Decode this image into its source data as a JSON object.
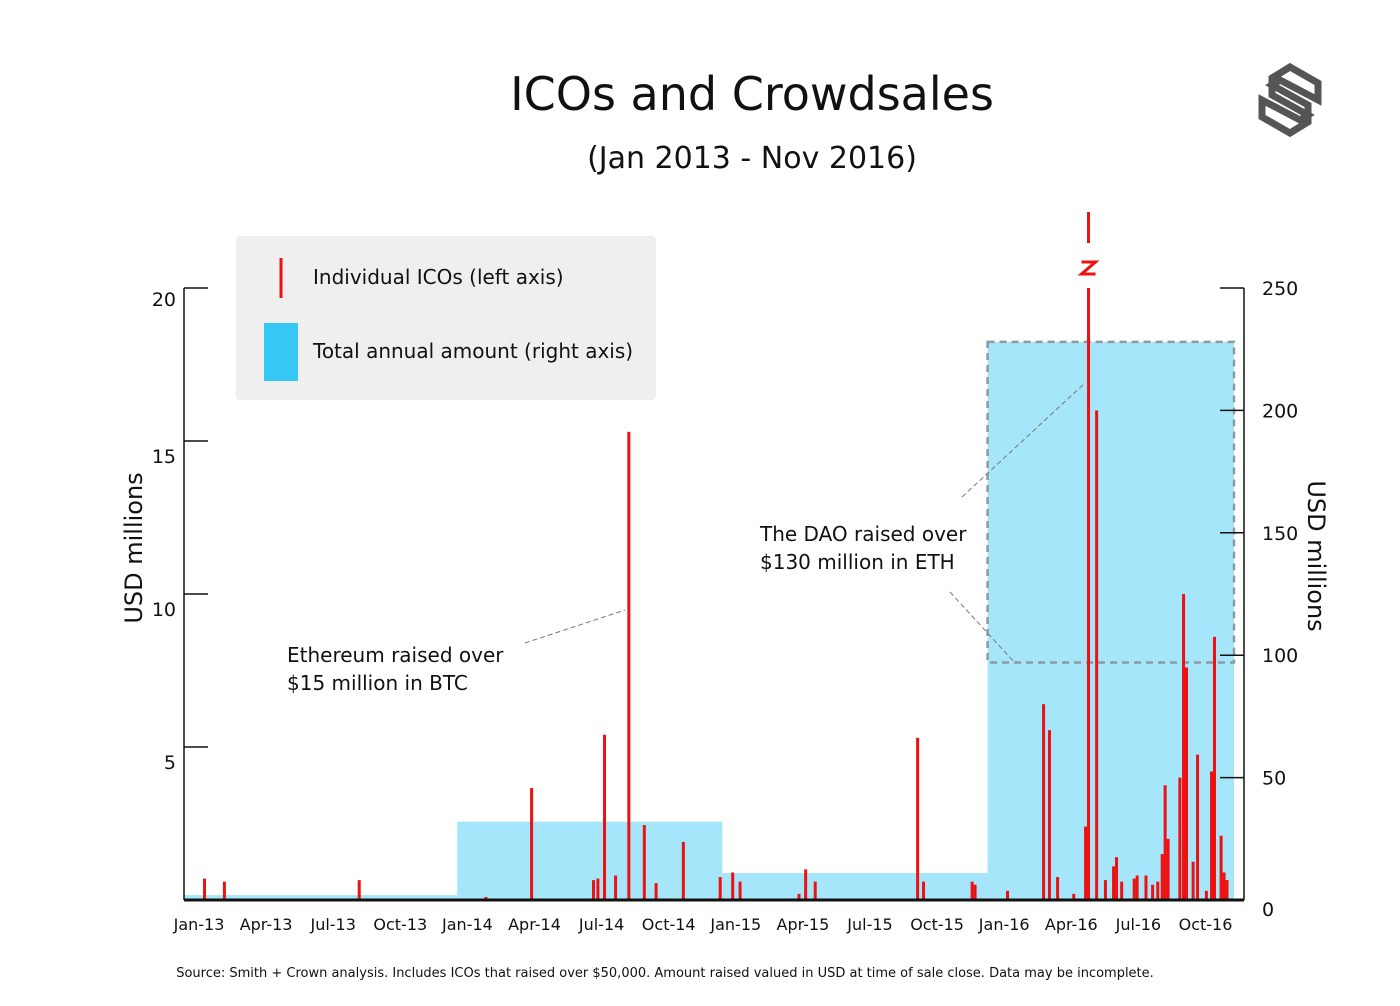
{
  "chart_data": {
    "type": "bar",
    "title": "ICOs and Crowdsales",
    "subtitle": "(Jan 2013 - Nov 2016)",
    "ylabel_left": "USD millions",
    "ylabel_right": "USD millions",
    "ylim_left": [
      0,
      20
    ],
    "ylim_right": [
      0,
      250
    ],
    "yticks_left": [
      "5",
      "10",
      "15",
      "20"
    ],
    "yticks_right": [
      "0",
      "50",
      "100",
      "150",
      "200",
      "250"
    ],
    "xticks": [
      "Jan-13",
      "Apr-13",
      "Jul-13",
      "Oct-13",
      "Jan-14",
      "Apr-14",
      "Jul-14",
      "Oct-14",
      "Jan-15",
      "Apr-15",
      "Jul-15",
      "Oct-15",
      "Jan-16",
      "Apr-16",
      "Jul-16",
      "Oct-16"
    ],
    "legend": {
      "placement": "top-left",
      "items": [
        {
          "label": "Individual ICOs (left axis)",
          "color": "#ee1111"
        },
        {
          "label": "Total annual amount (right axis)",
          "color": "#36c8f4"
        }
      ]
    },
    "annual_totals": [
      {
        "year": 2013,
        "value": 2
      },
      {
        "year": 2014,
        "value": 32
      },
      {
        "year": 2015,
        "value": 11
      },
      {
        "year": 2016,
        "value": 228,
        "dao_portion": 131
      }
    ],
    "individual_icos": [
      [
        "2013-01-18",
        0.7
      ],
      [
        "2013-02-15",
        0.6
      ],
      [
        "2013-08-18",
        0.65
      ],
      [
        "2014-02-10",
        0.1
      ],
      [
        "2014-04-12",
        3.66
      ],
      [
        "2014-07-06",
        0.65
      ],
      [
        "2014-07-12",
        0.7
      ],
      [
        "2014-07-21",
        5.4
      ],
      [
        "2014-08-06",
        0.8
      ],
      [
        "2014-08-24",
        15.3
      ],
      [
        "2014-09-15",
        2.45
      ],
      [
        "2014-10-01",
        0.55
      ],
      [
        "2014-11-08",
        1.9
      ],
      [
        "2014-12-28",
        0.75
      ],
      [
        "2015-01-15",
        0.9
      ],
      [
        "2015-01-25",
        0.6
      ],
      [
        "2015-04-15",
        0.2
      ],
      [
        "2015-04-24",
        1.0
      ],
      [
        "2015-05-07",
        0.6
      ],
      [
        "2015-09-26",
        5.3
      ],
      [
        "2015-10-04",
        0.6
      ],
      [
        "2015-12-10",
        0.6
      ],
      [
        "2015-12-14",
        0.5
      ],
      [
        "2016-01-28",
        0.3
      ],
      [
        "2016-03-17",
        6.4
      ],
      [
        "2016-03-25",
        5.55
      ],
      [
        "2016-04-06",
        0.75
      ],
      [
        "2016-04-28",
        0.2
      ],
      [
        "2016-05-14",
        2.4
      ],
      [
        "2016-05-18",
        131
      ],
      [
        "2016-05-29",
        16.0
      ],
      [
        "2016-06-11",
        0.65
      ],
      [
        "2016-06-22",
        1.1
      ],
      [
        "2016-06-26",
        1.4
      ],
      [
        "2016-07-03",
        0.6
      ],
      [
        "2016-07-20",
        0.7
      ],
      [
        "2016-07-24",
        0.8
      ],
      [
        "2016-08-06",
        0.8
      ],
      [
        "2016-08-15",
        0.5
      ],
      [
        "2016-08-22",
        0.6
      ],
      [
        "2016-08-28",
        1.5
      ],
      [
        "2016-09-02",
        3.75
      ],
      [
        "2016-09-06",
        2.0
      ],
      [
        "2016-09-22",
        4.0
      ],
      [
        "2016-09-27",
        10.0
      ],
      [
        "2016-10-01",
        7.6
      ],
      [
        "2016-10-10",
        1.25
      ],
      [
        "2016-10-16",
        4.75
      ],
      [
        "2016-10-28",
        0.3
      ],
      [
        "2016-11-05",
        4.2
      ],
      [
        "2016-11-09",
        8.6
      ],
      [
        "2016-11-18",
        2.1
      ],
      [
        "2016-11-22",
        0.9
      ],
      [
        "2016-11-26",
        0.65
      ]
    ],
    "annotations": {
      "ethereum": [
        "Ethereum raised over",
        "$15 million in BTC"
      ],
      "dao": [
        "The DAO raised over",
        "$130 million in ETH"
      ]
    },
    "grid": false
  },
  "source": "Source: Smith + Crown analysis. Includes ICOs that raised over $50,000. Amount raised valued in USD at time of sale close. Data may be incomplete.",
  "colors": {
    "ico": "#ee1111",
    "annual": "#a6e6fa",
    "legend_bg": "#efefef",
    "logo": "#555555"
  },
  "logo": "Smith + Crown S logo"
}
